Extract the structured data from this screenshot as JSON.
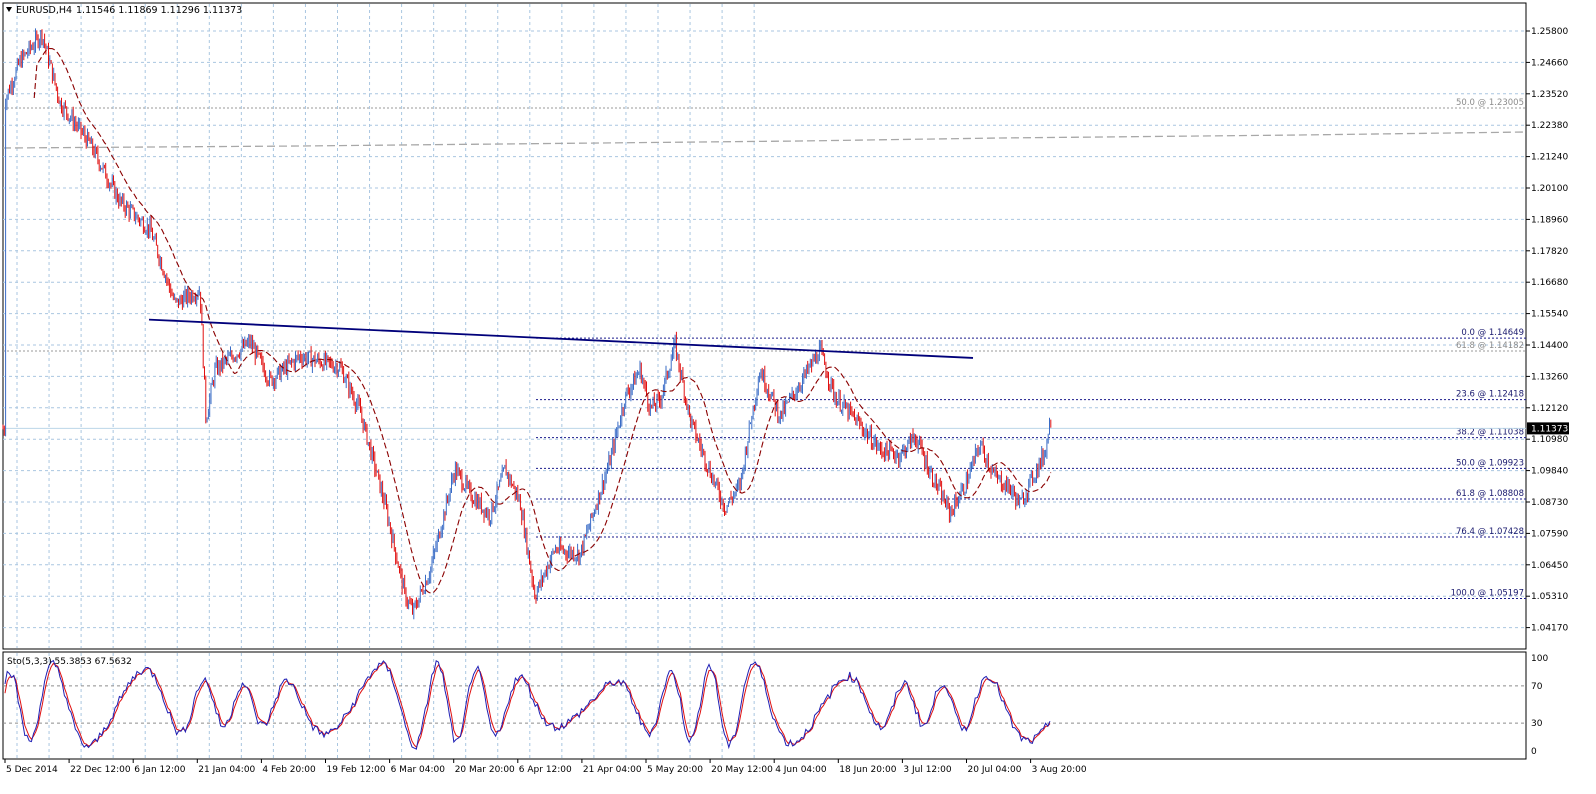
{
  "header": {
    "symbol": "EURUSD,H4",
    "ohlc": "1.11546 1.11869 1.11296 1.11373"
  },
  "oscillator": {
    "label": "Sto(5,3,3) 55.3853 67.5632",
    "levels": [
      "100",
      "70",
      "30",
      "0"
    ]
  },
  "price_axis": {
    "ticks": [
      "1.25800",
      "1.24660",
      "1.23520",
      "1.22380",
      "1.21240",
      "1.20100",
      "1.18960",
      "1.17820",
      "1.16680",
      "1.15540",
      "1.14400",
      "1.13260",
      "1.12120",
      "1.10980",
      "1.09840",
      "1.08730",
      "1.07590",
      "1.06450",
      "1.05310",
      "1.04170"
    ],
    "current_price": "1.11373"
  },
  "time_axis": {
    "labels": [
      "5 Dec 2014",
      "22 Dec 12:00",
      "6 Jan 12:00",
      "21 Jan 04:00",
      "4 Feb 20:00",
      "19 Feb 12:00",
      "6 Mar 04:00",
      "20 Mar 20:00",
      "6 Apr 12:00",
      "21 Apr 04:00",
      "5 May 20:00",
      "20 May 12:00",
      "4 Jun 04:00",
      "18 Jun 20:00",
      "3 Jul 12:00",
      "20 Jul 04:00",
      "3 Aug 20:00"
    ]
  },
  "fibonacci": [
    {
      "label": "0.0 @ 1.14649",
      "price": 1.14649
    },
    {
      "label": "23.6 @ 1.12418",
      "price": 1.12418
    },
    {
      "label": "38.2 @ 1.11038",
      "price": 1.11038
    },
    {
      "label": "50.0 @ 1.09923",
      "price": 1.09923
    },
    {
      "label": "61.8 @ 1.08808",
      "price": 1.08808
    },
    {
      "label": "76.4 @ 1.07428",
      "price": 1.07428
    },
    {
      "label": "100.0 @ 1.05197",
      "price": 1.05197
    }
  ],
  "fibonacci_upper": [
    {
      "label": "50.0 @ 1.23005",
      "price": 1.23005
    },
    {
      "label": "61.8 @ 1.14182",
      "price": 1.14182
    }
  ],
  "colors": {
    "bull_candle": "#3a6cc6",
    "bear_candle": "#e01010",
    "moving_average": "#8b0000",
    "trendline": "#00007a",
    "fib_line": "#1a1a8c",
    "grid": "#a9c6e0",
    "stochastic_main": "#1f1fb4",
    "stochastic_signal": "#e01010",
    "price_marker_bg": "#000000"
  }
}
